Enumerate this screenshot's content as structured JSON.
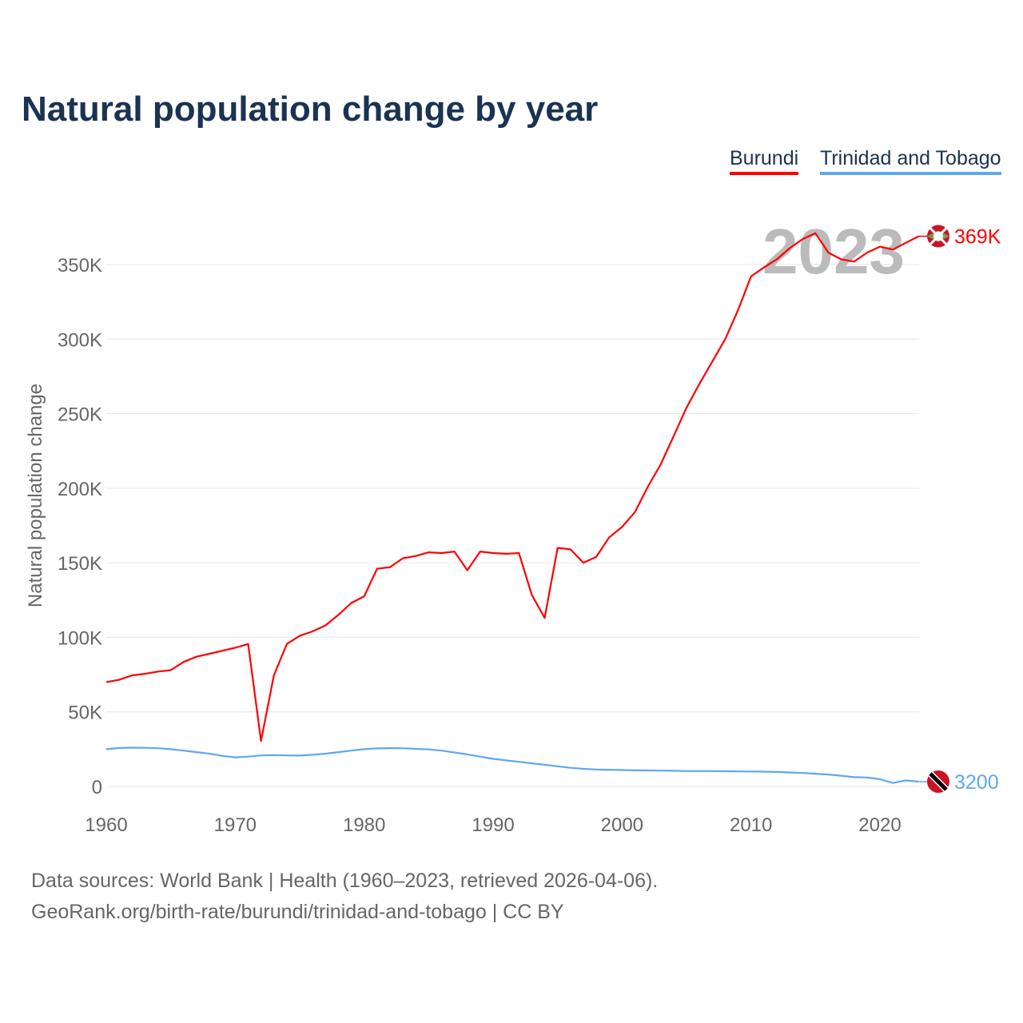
{
  "chart_data": {
    "type": "line",
    "title": "Natural population change by year",
    "xlabel": "",
    "ylabel": "Natural population change",
    "xlim": [
      1960,
      2023
    ],
    "ylim": [
      0,
      350000
    ],
    "grid": true,
    "legend_placement": "top-right",
    "yticks": [
      0,
      50000,
      100000,
      150000,
      200000,
      250000,
      300000,
      350000
    ],
    "ytick_labels": [
      "0",
      "50K",
      "100K",
      "150K",
      "200K",
      "250K",
      "300K",
      "350K"
    ],
    "xticks": [
      1960,
      1970,
      1980,
      1990,
      2000,
      2010,
      2020
    ],
    "xtick_labels": [
      "1960",
      "1970",
      "1980",
      "1990",
      "2000",
      "2010",
      "2020"
    ],
    "year_watermark": "2023",
    "x": [
      1960,
      1961,
      1962,
      1963,
      1964,
      1965,
      1966,
      1967,
      1968,
      1969,
      1970,
      1971,
      1972,
      1973,
      1974,
      1975,
      1976,
      1977,
      1978,
      1979,
      1980,
      1981,
      1982,
      1983,
      1984,
      1985,
      1986,
      1987,
      1988,
      1989,
      1990,
      1991,
      1992,
      1993,
      1994,
      1995,
      1996,
      1997,
      1998,
      1999,
      2000,
      2001,
      2002,
      2003,
      2004,
      2005,
      2006,
      2007,
      2008,
      2009,
      2010,
      2011,
      2012,
      2013,
      2014,
      2015,
      2016,
      2017,
      2018,
      2019,
      2020,
      2021,
      2022,
      2023
    ],
    "series": [
      {
        "name": "Burundi",
        "color": "#ff0000",
        "end_label": "369K",
        "flag": "burundi-flag-icon",
        "values": [
          70000,
          71500,
          74500,
          75500,
          77000,
          78000,
          83500,
          87000,
          89000,
          91000,
          93000,
          95500,
          30500,
          74500,
          95500,
          101000,
          104000,
          108000,
          115000,
          123000,
          127500,
          146000,
          147000,
          153000,
          154500,
          157000,
          156500,
          157500,
          145000,
          157500,
          156500,
          156000,
          156500,
          128500,
          113000,
          160000,
          159000,
          150000,
          154000,
          167000,
          174000,
          184000,
          201000,
          216000,
          235000,
          254000,
          270000,
          285000,
          300000,
          319500,
          342000,
          348000,
          353500,
          361000,
          367000,
          371000,
          358000,
          353500,
          352000,
          358000,
          362000,
          360000,
          364500,
          369000
        ]
      },
      {
        "name": "Trinidad and Tobago",
        "color": "#5ea8ee",
        "end_label": "3200",
        "flag": "trinidad-flag-icon",
        "values": [
          25000,
          25800,
          26000,
          25900,
          25600,
          25000,
          24000,
          23000,
          22000,
          20500,
          19500,
          20000,
          20800,
          21000,
          20800,
          20700,
          21200,
          22000,
          23000,
          24000,
          25000,
          25500,
          25700,
          25600,
          25200,
          24800,
          24000,
          22800,
          21500,
          20000,
          18500,
          17500,
          16500,
          15500,
          14500,
          13500,
          12500,
          11800,
          11300,
          11200,
          11000,
          10800,
          10700,
          10600,
          10500,
          10300,
          10300,
          10300,
          10200,
          10100,
          10000,
          9900,
          9700,
          9400,
          9000,
          8500,
          8000,
          7200,
          6200,
          6000,
          4800,
          2300,
          4000,
          3200
        ]
      }
    ]
  },
  "footer": {
    "line1": "Data sources: World Bank | Health (1960–2023, retrieved 2026-04-06).",
    "line2": "GeoRank.org/birth-rate/burundi/trinidad-and-tobago | CC BY"
  }
}
